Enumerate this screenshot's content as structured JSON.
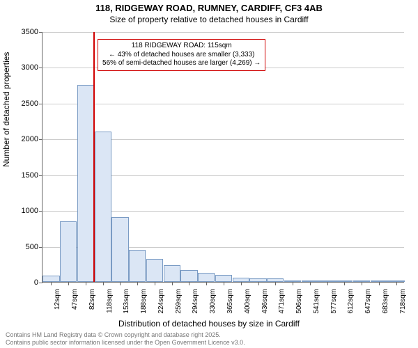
{
  "title_line1": "118, RIDGEWAY ROAD, RUMNEY, CARDIFF, CF3 4AB",
  "title_line2": "Size of property relative to detached houses in Cardiff",
  "y_axis_label": "Number of detached properties",
  "x_axis_label": "Distribution of detached houses by size in Cardiff",
  "footer_line1": "Contains HM Land Registry data © Crown copyright and database right 2025.",
  "footer_line2": "Contains public sector information licensed under the Open Government Licence v3.0.",
  "chart": {
    "type": "bar",
    "ylim": [
      0,
      3500
    ],
    "yticks": [
      0,
      500,
      1000,
      1500,
      2000,
      2500,
      3000,
      3500
    ],
    "categories": [
      "12sqm",
      "47sqm",
      "82sqm",
      "118sqm",
      "153sqm",
      "188sqm",
      "224sqm",
      "259sqm",
      "294sqm",
      "330sqm",
      "365sqm",
      "400sqm",
      "436sqm",
      "471sqm",
      "506sqm",
      "541sqm",
      "577sqm",
      "612sqm",
      "647sqm",
      "683sqm",
      "718sqm"
    ],
    "values": [
      90,
      850,
      2750,
      2100,
      900,
      450,
      320,
      230,
      170,
      130,
      100,
      60,
      45,
      45,
      15,
      10,
      8,
      6,
      5,
      4,
      3
    ],
    "bar_fill": "#dbe6f5",
    "bar_border": "#7a9bc4",
    "grid_color": "#cccccc",
    "axis_color": "#666666",
    "background_color": "#ffffff",
    "bar_width_ratio": 0.98,
    "label_fontsize": 12,
    "tick_fontsize": 11
  },
  "marker": {
    "value_sqm": 115,
    "line_color": "#d00000",
    "line_width": 2,
    "fractional_x": 0.1405
  },
  "annotation": {
    "border_color": "#d00000",
    "background": "#ffffff",
    "fontsize": 10,
    "line1": "118 RIDGEWAY ROAD: 115sqm",
    "line2": "← 43% of detached houses are smaller (3,333)",
    "line3": "56% of semi-detached houses are larger (4,269) →"
  }
}
